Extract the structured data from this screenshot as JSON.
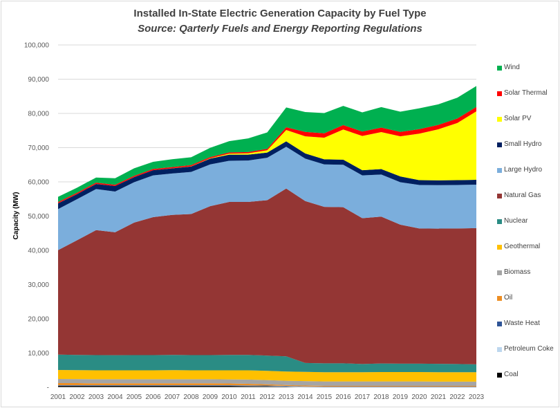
{
  "chart_data": {
    "type": "area",
    "stacked": true,
    "title": "Installed In-State Electric Generation Capacity by Fuel Type",
    "subtitle": "Source: Qarterly Fuels and Energy Reporting Regulations",
    "xlabel": "",
    "ylabel": "Capacity (MW)",
    "ylim": [
      0,
      100000
    ],
    "yticks": [
      "-",
      "10,000",
      "20,000",
      "30,000",
      "40,000",
      "50,000",
      "60,000",
      "70,000",
      "80,000",
      "90,000",
      "100,000"
    ],
    "grid": true,
    "legend_position": "right",
    "x": [
      "2001",
      "2002",
      "2003",
      "2004",
      "2005",
      "2006",
      "2007",
      "2008",
      "2009",
      "2010",
      "2011",
      "2012",
      "2013",
      "2014",
      "2015",
      "2016",
      "2017",
      "2018",
      "2019",
      "2020",
      "2021",
      "2022",
      "2023"
    ],
    "series": [
      {
        "name": "Wind",
        "color": "#00B050",
        "values": [
          1500,
          1500,
          1500,
          1900,
          2200,
          2100,
          2300,
          2300,
          2700,
          3300,
          4000,
          4800,
          5800,
          5800,
          5900,
          5600,
          5600,
          6000,
          5900,
          6100,
          6000,
          6100,
          6100
        ]
      },
      {
        "name": "Solar Thermal",
        "color": "#FF0000",
        "values": [
          350,
          350,
          350,
          350,
          350,
          350,
          350,
          350,
          350,
          350,
          350,
          400,
          800,
          1300,
          1300,
          1300,
          1300,
          1300,
          1300,
          1300,
          1300,
          1300,
          1300
        ]
      },
      {
        "name": "Solar PV",
        "color": "#FFFF00",
        "values": [
          20,
          20,
          20,
          20,
          20,
          20,
          20,
          50,
          100,
          300,
          400,
          700,
          3300,
          5000,
          6300,
          8800,
          10000,
          10800,
          11700,
          13600,
          14900,
          16700,
          20000
        ]
      },
      {
        "name": "Small Hydro",
        "color": "#002060",
        "values": [
          1700,
          1500,
          1500,
          1600,
          1500,
          1500,
          1500,
          1600,
          1700,
          1800,
          1700,
          1500,
          1600,
          1500,
          1500,
          1500,
          1500,
          1600,
          1700,
          1400,
          1400,
          1400,
          1400
        ]
      },
      {
        "name": "Large Hydro",
        "color": "#7BAEDC",
        "values": [
          12000,
          12000,
          12000,
          11900,
          11800,
          12200,
          12100,
          12300,
          12200,
          12000,
          12100,
          12400,
          12200,
          12400,
          12400,
          12400,
          12500,
          12300,
          12400,
          12700,
          12700,
          12700,
          12700
        ]
      },
      {
        "name": "Natural Gas",
        "color": "#943634",
        "values": [
          30500,
          33500,
          36500,
          35900,
          38700,
          40300,
          40900,
          41200,
          43500,
          44700,
          44700,
          45400,
          49000,
          47300,
          45700,
          45600,
          42600,
          42900,
          40600,
          39500,
          39500,
          39600,
          39800
        ]
      },
      {
        "name": "Nuclear",
        "color": "#2A8C84",
        "values": [
          4500,
          4450,
          4450,
          4430,
          4450,
          4450,
          4450,
          4450,
          4450,
          4500,
          4500,
          4450,
          4450,
          2600,
          2600,
          2600,
          2400,
          2500,
          2450,
          2450,
          2450,
          2400,
          2300
        ]
      },
      {
        "name": "Geothermal",
        "color": "#FFC000",
        "values": [
          2630,
          2600,
          2600,
          2600,
          2600,
          2600,
          2650,
          2600,
          2600,
          2650,
          2700,
          2700,
          2700,
          2700,
          2700,
          2700,
          2700,
          2750,
          2750,
          2750,
          2750,
          2750,
          2750
        ]
      },
      {
        "name": "Biomass",
        "color": "#A5A5A5",
        "values": [
          1220,
          1200,
          1200,
          1200,
          1200,
          1200,
          1200,
          1200,
          1200,
          1200,
          1250,
          1250,
          1250,
          1300,
          1300,
          1300,
          1300,
          1300,
          1300,
          1300,
          1250,
          1250,
          1250
        ]
      },
      {
        "name": "Oil",
        "color": "#ED8E23",
        "values": [
          600,
          600,
          550,
          550,
          550,
          550,
          550,
          550,
          550,
          500,
          450,
          350,
          250,
          250,
          200,
          200,
          200,
          200,
          200,
          200,
          200,
          200,
          200
        ]
      },
      {
        "name": "Waste Heat",
        "color": "#2F5597",
        "values": [
          100,
          100,
          100,
          100,
          100,
          100,
          100,
          100,
          100,
          100,
          100,
          100,
          100,
          100,
          100,
          100,
          100,
          100,
          100,
          100,
          100,
          100,
          100
        ]
      },
      {
        "name": "Petroleum Coke",
        "color": "#BDD7EE",
        "values": [
          100,
          100,
          100,
          100,
          100,
          100,
          100,
          100,
          100,
          100,
          100,
          100,
          100,
          50,
          50,
          50,
          50,
          50,
          50,
          50,
          50,
          50,
          50
        ]
      },
      {
        "name": "Coal",
        "color": "#000000",
        "values": [
          400,
          400,
          400,
          400,
          400,
          400,
          400,
          400,
          400,
          400,
          350,
          300,
          200,
          100,
          50,
          50,
          50,
          50,
          50,
          50,
          50,
          50,
          50
        ]
      }
    ]
  }
}
